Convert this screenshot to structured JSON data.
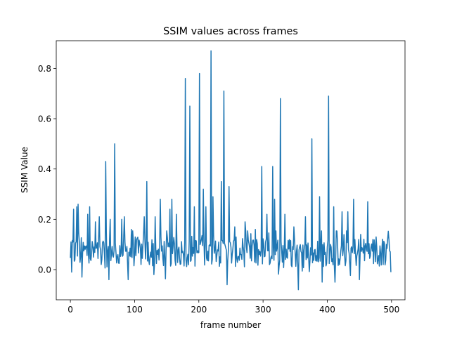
{
  "chart_data": {
    "type": "line",
    "title": "SSIM values across frames",
    "xlabel": "frame number",
    "ylabel": "SSIM Value",
    "xlim": [
      -22,
      521
    ],
    "ylim": [
      -0.12,
      0.91
    ],
    "xticks": [
      0,
      100,
      200,
      300,
      400,
      500
    ],
    "xtick_labels": [
      "0",
      "100",
      "200",
      "300",
      "400",
      "500"
    ],
    "yticks": [
      0.0,
      0.2,
      0.4,
      0.6,
      0.8
    ],
    "ytick_labels": [
      "0.0",
      "0.2",
      "0.4",
      "0.6",
      "0.8"
    ],
    "grid": false,
    "legend": "none",
    "series": [
      {
        "color": "#1f77b4",
        "x_start": 0,
        "x_end": 499,
        "noise_range": [
          -0.04,
          0.22
        ],
        "peaks": [
          {
            "x": 1,
            "y": 0.11
          },
          {
            "x": 5,
            "y": 0.24
          },
          {
            "x": 10,
            "y": 0.25
          },
          {
            "x": 12,
            "y": 0.26
          },
          {
            "x": 18,
            "y": 0.17
          },
          {
            "x": 27,
            "y": 0.22
          },
          {
            "x": 30,
            "y": 0.25
          },
          {
            "x": 39,
            "y": 0.19
          },
          {
            "x": 45,
            "y": 0.21
          },
          {
            "x": 55,
            "y": 0.43
          },
          {
            "x": 62,
            "y": 0.2
          },
          {
            "x": 69,
            "y": 0.5
          },
          {
            "x": 80,
            "y": 0.2
          },
          {
            "x": 84,
            "y": 0.21
          },
          {
            "x": 95,
            "y": 0.16
          },
          {
            "x": 115,
            "y": 0.21
          },
          {
            "x": 119,
            "y": 0.35
          },
          {
            "x": 132,
            "y": 0.21
          },
          {
            "x": 140,
            "y": 0.28
          },
          {
            "x": 155,
            "y": 0.24
          },
          {
            "x": 158,
            "y": 0.28
          },
          {
            "x": 165,
            "y": 0.22
          },
          {
            "x": 179,
            "y": 0.76
          },
          {
            "x": 186,
            "y": 0.65
          },
          {
            "x": 193,
            "y": 0.25
          },
          {
            "x": 201,
            "y": 0.78
          },
          {
            "x": 207,
            "y": 0.32
          },
          {
            "x": 211,
            "y": 0.25
          },
          {
            "x": 219,
            "y": 0.87
          },
          {
            "x": 222,
            "y": 0.29
          },
          {
            "x": 235,
            "y": 0.35
          },
          {
            "x": 239,
            "y": 0.71
          },
          {
            "x": 247,
            "y": 0.33
          },
          {
            "x": 256,
            "y": 0.17
          },
          {
            "x": 272,
            "y": 0.19
          },
          {
            "x": 288,
            "y": 0.16
          },
          {
            "x": 298,
            "y": 0.41
          },
          {
            "x": 306,
            "y": 0.22
          },
          {
            "x": 315,
            "y": 0.41
          },
          {
            "x": 318,
            "y": 0.28
          },
          {
            "x": 327,
            "y": 0.68
          },
          {
            "x": 334,
            "y": 0.22
          },
          {
            "x": 348,
            "y": 0.17
          },
          {
            "x": 366,
            "y": 0.21
          },
          {
            "x": 376,
            "y": 0.52
          },
          {
            "x": 388,
            "y": 0.29
          },
          {
            "x": 402,
            "y": 0.69
          },
          {
            "x": 410,
            "y": 0.25
          },
          {
            "x": 423,
            "y": 0.23
          },
          {
            "x": 432,
            "y": 0.23
          },
          {
            "x": 441,
            "y": 0.28
          },
          {
            "x": 452,
            "y": 0.14
          },
          {
            "x": 463,
            "y": 0.27
          },
          {
            "x": 476,
            "y": 0.13
          },
          {
            "x": 492,
            "y": 0.1
          },
          {
            "x": 496,
            "y": 0.12
          }
        ],
        "troughs": [
          {
            "x": 2,
            "y": -0.01
          },
          {
            "x": 18,
            "y": -0.03
          },
          {
            "x": 60,
            "y": -0.04
          },
          {
            "x": 90,
            "y": -0.04
          },
          {
            "x": 130,
            "y": -0.02
          },
          {
            "x": 244,
            "y": -0.06
          },
          {
            "x": 355,
            "y": -0.08
          },
          {
            "x": 392,
            "y": -0.05
          },
          {
            "x": 412,
            "y": -0.05
          },
          {
            "x": 450,
            "y": -0.04
          },
          {
            "x": 499,
            "y": -0.01
          }
        ]
      }
    ]
  }
}
